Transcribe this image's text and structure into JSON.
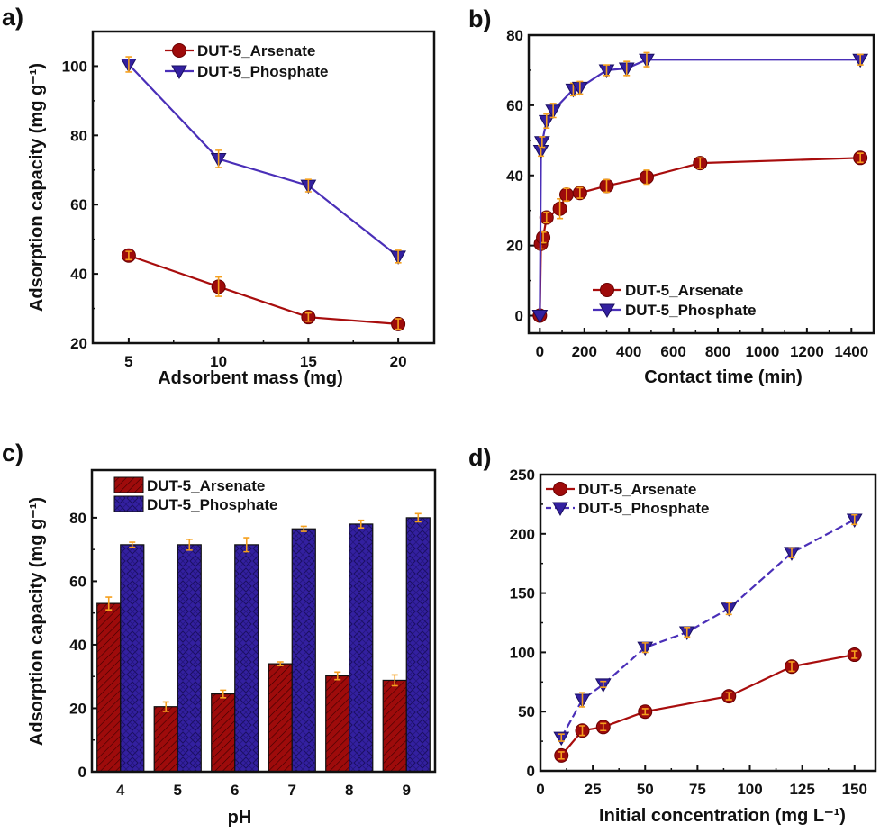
{
  "colors": {
    "arsenate": "#9e0b0b",
    "phosphate": "#3320a0",
    "error_bar": "#f5a01e",
    "axis": "#111111"
  },
  "chart_data": [
    {
      "panel_label": "a)",
      "type": "line",
      "xlabel": "Adsorbent mass (mg)",
      "ylabel": "Adsorption capacity (mg g⁻¹)",
      "xlim": [
        3,
        22
      ],
      "ylim": [
        20,
        110
      ],
      "xticks": [
        5,
        10,
        15,
        20
      ],
      "yticks": [
        20,
        40,
        60,
        80,
        100
      ],
      "legend": "top-center",
      "series": [
        {
          "name": "DUT-5_Arsenate",
          "marker": "circle",
          "x": [
            5,
            10,
            15,
            20
          ],
          "y": [
            45.3,
            36.3,
            27.5,
            25.5
          ],
          "yerr": [
            1.2,
            2.8,
            1.2,
            1.5
          ]
        },
        {
          "name": "DUT-5_Phosphate",
          "marker": "triangle-down",
          "x": [
            5,
            10,
            15,
            20
          ],
          "y": [
            100.5,
            73.2,
            65.5,
            45
          ],
          "yerr": [
            2.2,
            2.5,
            1.8,
            1.8
          ]
        }
      ]
    },
    {
      "panel_label": "b)",
      "type": "line",
      "xlabel": "Contact time (min)",
      "ylabel": "",
      "xlim": [
        -50,
        1500
      ],
      "ylim": [
        -5,
        80
      ],
      "xticks": [
        0,
        200,
        400,
        600,
        800,
        1000,
        1200,
        1400
      ],
      "yticks": [
        0,
        20,
        40,
        60,
        80
      ],
      "legend": "bottom-center",
      "series": [
        {
          "name": "DUT-5_Arsenate",
          "marker": "circle",
          "x": [
            0,
            5,
            15,
            30,
            90,
            120,
            180,
            300,
            480,
            720,
            1440
          ],
          "y": [
            0,
            20.5,
            22.3,
            28,
            30.5,
            34.5,
            35,
            37,
            39.5,
            43.5,
            45
          ],
          "yerr": [
            0,
            1.5,
            1.5,
            1.5,
            2.8,
            1.8,
            1.5,
            1.8,
            2,
            1.5,
            1.3
          ]
        },
        {
          "name": "DUT-5_Phosphate",
          "marker": "triangle-down",
          "x": [
            0,
            5,
            10,
            30,
            60,
            150,
            180,
            300,
            390,
            480,
            1440
          ],
          "y": [
            0,
            47,
            49.5,
            55.5,
            58.5,
            64.5,
            65,
            70,
            70.5,
            73,
            73
          ],
          "yerr": [
            0,
            1.5,
            1.5,
            2,
            2,
            1.8,
            1.8,
            1.5,
            2,
            2,
            1.5
          ]
        }
      ]
    },
    {
      "panel_label": "c)",
      "type": "bar",
      "xlabel": "pH",
      "ylabel": "Adsorption capacity (mg g⁻¹)",
      "categories": [
        "4",
        "5",
        "6",
        "7",
        "8",
        "9"
      ],
      "ylim": [
        0,
        95
      ],
      "yticks": [
        0,
        20,
        40,
        60,
        80
      ],
      "legend": "top-left",
      "series": [
        {
          "name": "DUT-5_Arsenate",
          "pattern": "diagonal-hatch",
          "values": [
            53,
            20.5,
            24.5,
            34,
            30.2,
            28.8
          ],
          "yerr": [
            2,
            1.5,
            1.2,
            0.6,
            1.2,
            1.7
          ]
        },
        {
          "name": "DUT-5_Phosphate",
          "pattern": "diamond-crosshatch",
          "values": [
            71.5,
            71.5,
            71.5,
            76.5,
            78,
            80
          ],
          "yerr": [
            0.8,
            1.7,
            2.2,
            0.8,
            1.2,
            1.3
          ]
        }
      ]
    },
    {
      "panel_label": "d)",
      "type": "line",
      "xlabel": "Initial concentration (mg L⁻¹)",
      "ylabel": "",
      "xlim": [
        0,
        160
      ],
      "ylim": [
        0,
        250
      ],
      "xticks": [
        0,
        25,
        50,
        75,
        100,
        125,
        150
      ],
      "yticks": [
        0,
        50,
        100,
        150,
        200,
        250
      ],
      "legend": "top-left",
      "series": [
        {
          "name": "DUT-5_Arsenate",
          "marker": "circle",
          "line": "solid",
          "x": [
            10,
            20,
            30,
            50,
            90,
            120,
            150
          ],
          "y": [
            13,
            34,
            37,
            50,
            63,
            88,
            98
          ],
          "yerr": [
            3,
            4,
            3,
            2.5,
            3,
            4,
            3
          ]
        },
        {
          "name": "DUT-5_Phosphate",
          "marker": "triangle-down",
          "line": "dashed",
          "x": [
            10,
            20,
            30,
            50,
            70,
            90,
            120,
            150
          ],
          "y": [
            28,
            60,
            73,
            104,
            117,
            137,
            184,
            212
          ],
          "yerr": [
            3,
            6,
            2.5,
            4,
            4,
            5,
            4,
            4
          ]
        }
      ]
    }
  ]
}
